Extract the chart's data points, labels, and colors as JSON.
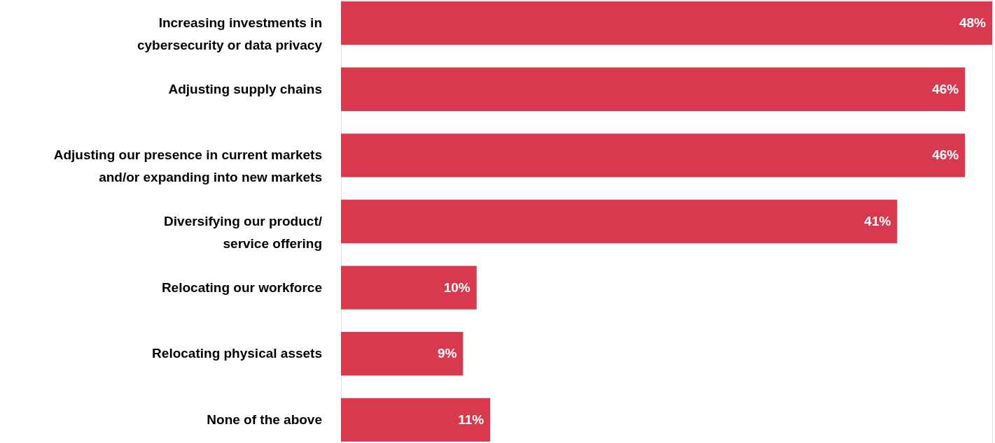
{
  "chart_data": {
    "type": "bar",
    "orientation": "horizontal",
    "categories": [
      "Increasing investments in\ncybersecurity or data privacy",
      "Adjusting supply chains",
      "Adjusting our presence in current markets\nand/or expanding into new markets",
      "Diversifying our product/\nservice offering",
      "Relocating our workforce",
      "Relocating physical assets",
      "None of the above"
    ],
    "values": [
      48,
      46,
      46,
      41,
      10,
      9,
      11
    ],
    "value_labels": [
      "48%",
      "46%",
      "46%",
      "41%",
      "10%",
      "9%",
      "11%"
    ],
    "color": "#d9394f",
    "grid": false,
    "tick_labels": "y"
  }
}
